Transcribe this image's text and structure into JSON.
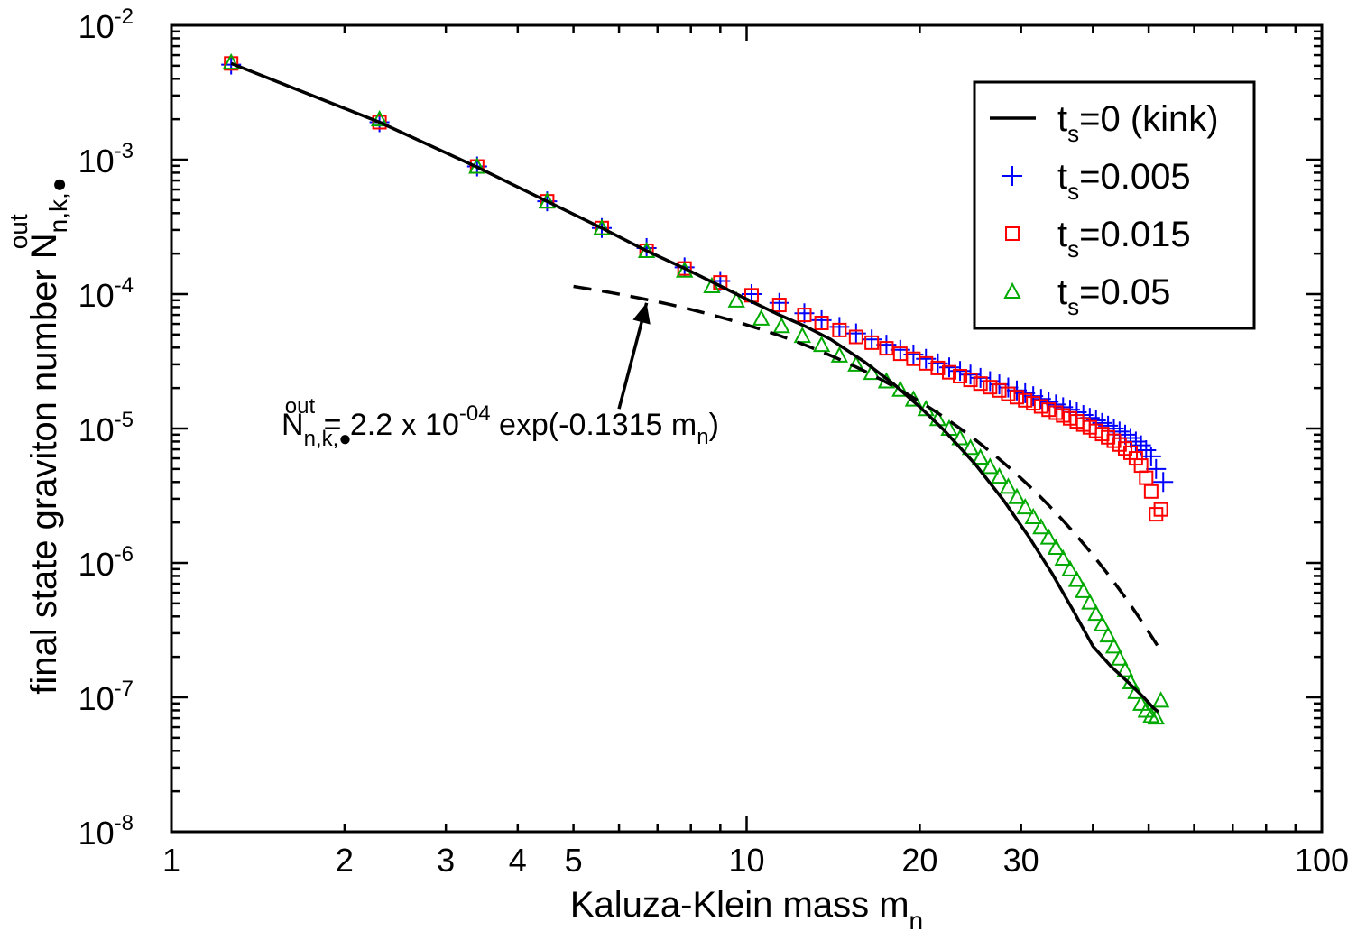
{
  "chart_data": {
    "type": "scatter",
    "x_scale": "log",
    "y_scale": "log",
    "xlim": [
      1,
      100
    ],
    "ylim": [
      1e-08,
      0.01
    ],
    "x_ticks": [
      1,
      2,
      3,
      4,
      5,
      10,
      20,
      30,
      100
    ],
    "x_tick_labels": [
      "1",
      "2",
      "3",
      "4",
      "5",
      "10",
      "20",
      "30",
      "100"
    ],
    "y_ticks": [
      1e-08,
      1e-07,
      1e-06,
      1e-05,
      0.0001,
      0.001,
      0.01
    ],
    "y_tick_mantissa": "10",
    "y_tick_exponents": [
      "-8",
      "-7",
      "-6",
      "-5",
      "-4",
      "-3",
      "-2"
    ],
    "xlabel": {
      "text": "Kaluza-Klein mass m",
      "sub": "n"
    },
    "ylabel": {
      "text": "final state graviton number N",
      "sub": "n,k,●",
      "sup": "out"
    },
    "legend": {
      "position": "top-right",
      "entries": [
        {
          "base": "t",
          "sub": "s",
          "rest": "=0 (kink)",
          "marker": "line",
          "color": "#000000"
        },
        {
          "base": "t",
          "sub": "s",
          "rest": "=0.005",
          "marker": "plus",
          "color": "#0000ff"
        },
        {
          "base": "t",
          "sub": "s",
          "rest": "=0.015",
          "marker": "square",
          "color": "#ff0000"
        },
        {
          "base": "t",
          "sub": "s",
          "rest": "=0.05",
          "marker": "triangle",
          "color": "#00aa00"
        }
      ]
    },
    "annotation": {
      "n": "N",
      "n_sub": "n,k,●",
      "n_sup": "out",
      "eq": " = 2.2 x 10",
      "exp": "-04",
      "rest1": " exp(-0.1315 m",
      "rest_sub": "n",
      "rest2": ")",
      "arrow_from": [
        6.0,
        1.4e-05
      ],
      "arrow_to": [
        6.7,
        8.6e-05
      ]
    },
    "fit_curve": {
      "amplitude": 0.00022,
      "rate": 0.1315,
      "x_range": [
        5.0,
        52.0
      ],
      "style": "dashed",
      "color": "#000000"
    },
    "series": [
      {
        "name": "t_s=0 (kink)",
        "type": "line",
        "color": "#000000",
        "x": [
          1.27,
          2.3,
          3.4,
          4.5,
          5.6,
          6.7,
          7.8,
          9.0,
          10.2,
          11.4,
          12.6,
          14.0,
          16.0,
          18.0,
          20.0,
          22.0,
          25.0,
          28.0,
          31.0,
          34.0,
          37.0,
          40.0,
          43.0,
          46.0,
          49.0,
          51.0,
          52.0
        ],
        "y": [
          0.0052,
          0.0019,
          0.00088,
          0.00049,
          0.00031,
          0.00021,
          0.000155,
          0.000115,
          8.8e-05,
          7e-05,
          5.8e-05,
          4.6e-05,
          3.15e-05,
          2.15e-05,
          1.45e-05,
          9.8e-06,
          5.4e-06,
          2.9e-06,
          1.55e-06,
          8.3e-07,
          4.4e-07,
          2.4e-07,
          1.7e-07,
          1.3e-07,
          1e-07,
          8.3e-08,
          7.8e-08
        ]
      },
      {
        "name": "t_s=0.005",
        "type": "scatter",
        "marker": "plus",
        "color": "#0000ff",
        "x": [
          1.27,
          2.3,
          3.4,
          4.5,
          5.6,
          6.7,
          7.8,
          9.0,
          10.2,
          11.4,
          12.6,
          13.5,
          14.5,
          15.5,
          16.5,
          17.5,
          18.5,
          19.5,
          20.5,
          21.5,
          22.5,
          23.5,
          24.5,
          25.5,
          26.5,
          27.5,
          28.5,
          29.5,
          30.5,
          31.5,
          32.5,
          33.5,
          34.5,
          35.5,
          36.5,
          37.5,
          38.5,
          39.5,
          40.5,
          41.5,
          42.5,
          43.5,
          44.5,
          45.5,
          46.5,
          47.5,
          48.5,
          49.5,
          50.5,
          51.5,
          53.0
        ],
        "y": [
          0.0051,
          0.0019,
          0.00089,
          0.00049,
          0.00031,
          0.00022,
          0.000158,
          0.000125,
          0.0001,
          8.6e-05,
          7.2e-05,
          6.4e-05,
          5.7e-05,
          5.1e-05,
          4.6e-05,
          4.2e-05,
          3.85e-05,
          3.55e-05,
          3.3e-05,
          3.05e-05,
          2.85e-05,
          2.68e-05,
          2.52e-05,
          2.38e-05,
          2.25e-05,
          2.13e-05,
          2.02e-05,
          1.92e-05,
          1.83e-05,
          1.74e-05,
          1.66e-05,
          1.58e-05,
          1.51e-05,
          1.44e-05,
          1.38e-05,
          1.32e-05,
          1.26e-05,
          1.2e-05,
          1.15e-05,
          1.1e-05,
          1.05e-05,
          1e-05,
          9.5e-06,
          9e-06,
          8.5e-06,
          8e-06,
          7.5e-06,
          6.9e-06,
          6.2e-06,
          5e-06,
          4e-06
        ]
      },
      {
        "name": "t_s=0.015",
        "type": "scatter",
        "marker": "square",
        "color": "#ff0000",
        "x": [
          1.27,
          2.3,
          3.4,
          4.5,
          5.6,
          6.7,
          7.8,
          9.0,
          10.2,
          11.4,
          12.6,
          13.5,
          14.5,
          15.5,
          16.5,
          17.5,
          18.5,
          19.5,
          20.5,
          21.5,
          22.5,
          23.5,
          24.5,
          25.5,
          26.5,
          27.5,
          28.5,
          29.5,
          30.5,
          31.5,
          32.5,
          33.5,
          34.5,
          35.5,
          36.5,
          37.5,
          38.5,
          39.5,
          40.5,
          41.5,
          42.5,
          43.5,
          44.5,
          45.5,
          46.5,
          47.5,
          48.5,
          49.5,
          50.5,
          51.5,
          52.5
        ],
        "y": [
          0.0052,
          0.0019,
          0.00089,
          0.00049,
          0.00031,
          0.00021,
          0.000155,
          0.000122,
          9.8e-05,
          8.3e-05,
          7e-05,
          6.1e-05,
          5.4e-05,
          4.8e-05,
          4.35e-05,
          3.95e-05,
          3.6e-05,
          3.3e-05,
          3.05e-05,
          2.82e-05,
          2.62e-05,
          2.45e-05,
          2.3e-05,
          2.16e-05,
          2.03e-05,
          1.92e-05,
          1.81e-05,
          1.71e-05,
          1.62e-05,
          1.54e-05,
          1.46e-05,
          1.38e-05,
          1.31e-05,
          1.25e-05,
          1.19e-05,
          1.13e-05,
          1.07e-05,
          1.02e-05,
          9.6e-06,
          9.1e-06,
          8.6e-06,
          8.1e-06,
          7.6e-06,
          7.1e-06,
          6.6e-06,
          6e-06,
          5.3e-06,
          4.3e-06,
          3.4e-06,
          2.3e-06,
          2.5e-06
        ]
      },
      {
        "name": "t_s=0.05",
        "type": "scatter",
        "marker": "triangle",
        "color": "#00aa00",
        "x": [
          1.27,
          2.3,
          3.4,
          4.5,
          5.6,
          6.7,
          7.8,
          8.7,
          9.6,
          10.6,
          11.5,
          12.5,
          13.5,
          14.5,
          15.5,
          16.5,
          17.5,
          18.5,
          19.5,
          20.5,
          21.5,
          22.5,
          23.5,
          24.5,
          25.5,
          26.5,
          27.5,
          28.5,
          29.5,
          30.5,
          31.5,
          32.5,
          33.5,
          34.5,
          35.5,
          36.5,
          37.5,
          38.5,
          39.5,
          40.5,
          41.5,
          42.5,
          43.5,
          44.5,
          45.5,
          46.5,
          47.5,
          48.5,
          49.5,
          50.5,
          51.5,
          52.5
        ],
        "y": [
          0.0053,
          0.002,
          0.00089,
          0.00049,
          0.00031,
          0.00021,
          0.00015,
          0.000115,
          9e-05,
          6.6e-05,
          5.8e-05,
          4.9e-05,
          4.2e-05,
          3.5e-05,
          3e-05,
          2.6e-05,
          2.25e-05,
          1.95e-05,
          1.65e-05,
          1.4e-05,
          1.18e-05,
          1e-05,
          8.5e-06,
          7.2e-06,
          6.1e-06,
          5.2e-06,
          4.4e-06,
          3.7e-06,
          3.1e-06,
          2.6e-06,
          2.2e-06,
          1.85e-06,
          1.55e-06,
          1.3e-06,
          1.08e-06,
          9e-07,
          7.5e-07,
          6.2e-07,
          5.1e-07,
          4.2e-07,
          3.5e-07,
          2.9e-07,
          2.4e-07,
          1.95e-07,
          1.6e-07,
          1.3e-07,
          1.1e-07,
          9e-08,
          8e-08,
          7.3e-08,
          7.1e-08,
          9.5e-08
        ]
      }
    ]
  }
}
